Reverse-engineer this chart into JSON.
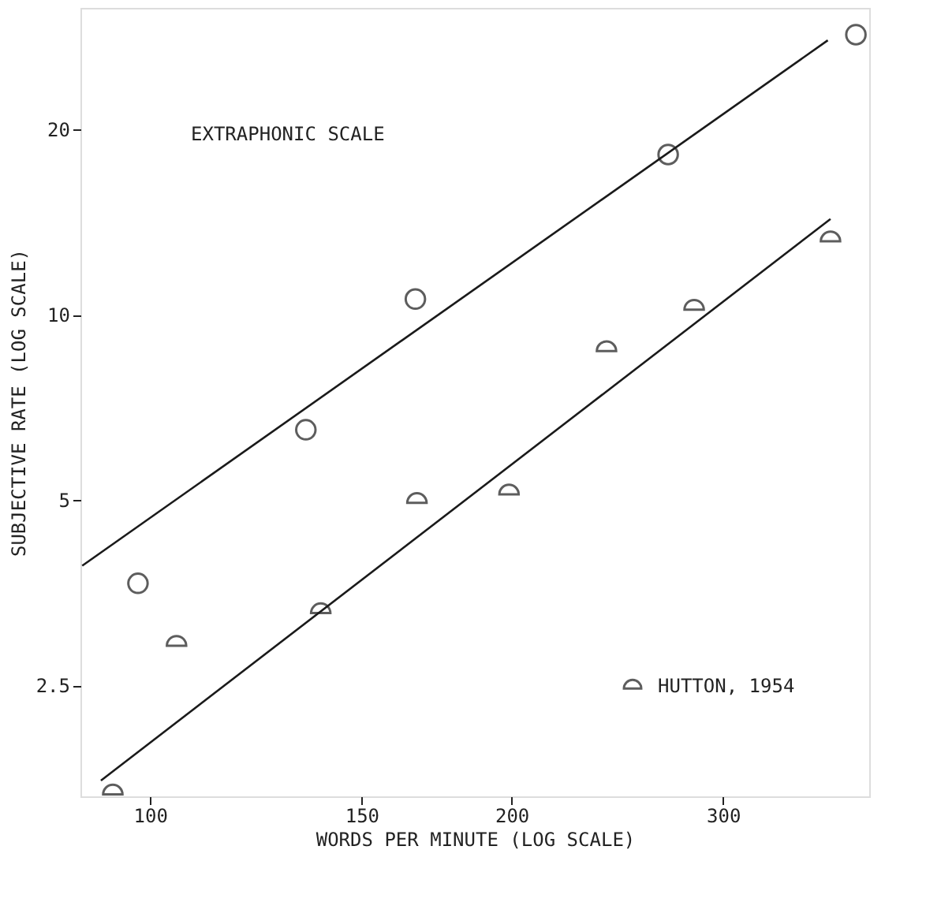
{
  "chart_data": {
    "type": "scatter",
    "xlabel": "WORDS PER MINUTE  (LOG SCALE)",
    "ylabel": "SUBJECTIVE RATE  (LOG SCALE)",
    "log": "xy",
    "xlim": [
      87.5,
      397
    ],
    "ylim": [
      1.65,
      31.5
    ],
    "xticks": [
      100,
      150,
      200,
      300
    ],
    "yticks": [
      2.5,
      5,
      10,
      20
    ],
    "grid": false,
    "legend": "bottom right",
    "annotations": [
      "EXTRAPHONIC SCALE"
    ],
    "series": [
      {
        "marker": "circle",
        "color": "#1a1a1a",
        "x": [
          97.7,
          134.8,
          166.3,
          270,
          387
        ],
        "values": [
          3.66,
          6.5,
          10.6,
          18.2,
          28.5
        ]
      },
      {
        "name": "HUTTON, 1954",
        "marker": "semicircle",
        "color": "#1a1a1a",
        "x": [
          93.1,
          105.2,
          138.7,
          166.8,
          199,
          239.9,
          283.8,
          368.6
        ],
        "values": [
          1.68,
          2.93,
          3.31,
          5.0,
          5.16,
          8.82,
          10.3,
          13.3
        ]
      },
      {
        "type": "line",
        "marker": "none",
        "color": "#1a1a1a",
        "x": [
          87.8,
          366.7
        ],
        "values": [
          3.91,
          27.9
        ]
      },
      {
        "type": "line",
        "marker": "none",
        "color": "#1a1a1a",
        "x": [
          91.0,
          368.6
        ],
        "values": [
          1.75,
          14.3
        ]
      }
    ]
  }
}
